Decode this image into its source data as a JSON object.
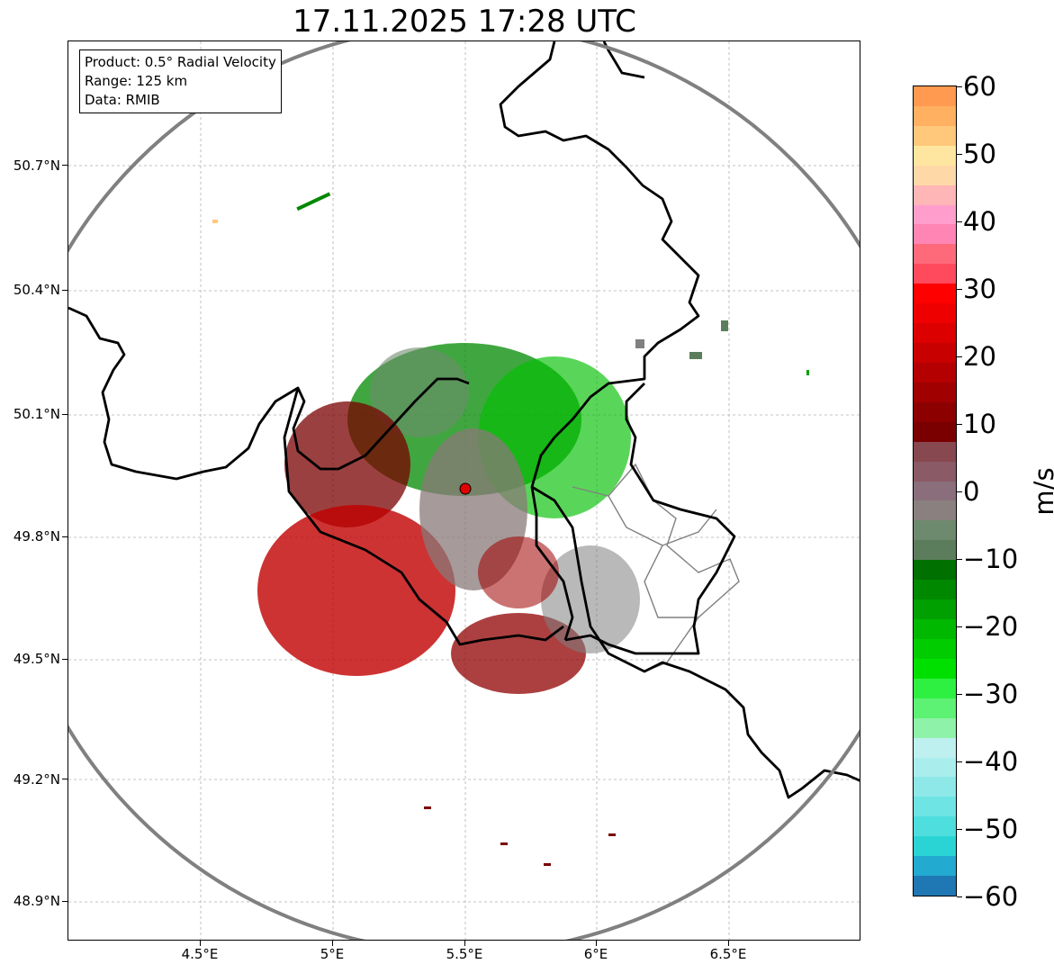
{
  "title": "17.11.2025 17:28 UTC",
  "info": {
    "product": "Product: 0.5° Radial Velocity",
    "range": "Range: 125 km",
    "data": "Data: RMIB"
  },
  "axes": {
    "lat_labels": [
      "50.7°N",
      "50.4°N",
      "50.1°N",
      "49.8°N",
      "49.5°N",
      "49.2°N",
      "48.9°N"
    ],
    "lon_labels": [
      "4.5°E",
      "5°E",
      "5.5°E",
      "6°E",
      "6.5°E"
    ]
  },
  "colorbar": {
    "unit": "m/s",
    "tick_labels": [
      "60",
      "50",
      "40",
      "30",
      "20",
      "10",
      "0",
      "−10",
      "−20",
      "−30",
      "−40",
      "−50",
      "−60"
    ],
    "range": [
      -60,
      60
    ],
    "colors": [
      "#1f77b4",
      "#22aad0",
      "#2bd4d4",
      "#4fdede",
      "#6fe4e4",
      "#8ee8e8",
      "#aaeded",
      "#bff0f0",
      "#8ef2a8",
      "#5ef274",
      "#2ef040",
      "#00e000",
      "#00cc00",
      "#00b800",
      "#00a000",
      "#008800",
      "#007000",
      "#5c7d5c",
      "#6e8a6e",
      "#8a8080",
      "#8a6e7c",
      "#8a5a66",
      "#884850",
      "#7a0000",
      "#8c0000",
      "#a00000",
      "#b40000",
      "#c80000",
      "#dc0000",
      "#ef0000",
      "#ff0000",
      "#ff4a5e",
      "#ff6a7a",
      "#ff86b4",
      "#ff9ecc",
      "#ffb6b6",
      "#ffd8a8",
      "#ffe6a0",
      "#ffc87a",
      "#ffb060",
      "#ff9a50"
    ]
  },
  "colors": {
    "inbound_green": "#00a000",
    "outbound_red": "#c00000",
    "zero_gray": "#808080",
    "range_ring": "#808080",
    "border": "#000000",
    "radar_marker": "#e00000"
  },
  "radar_site": {
    "lat": 49.91,
    "lon": 5.5
  }
}
